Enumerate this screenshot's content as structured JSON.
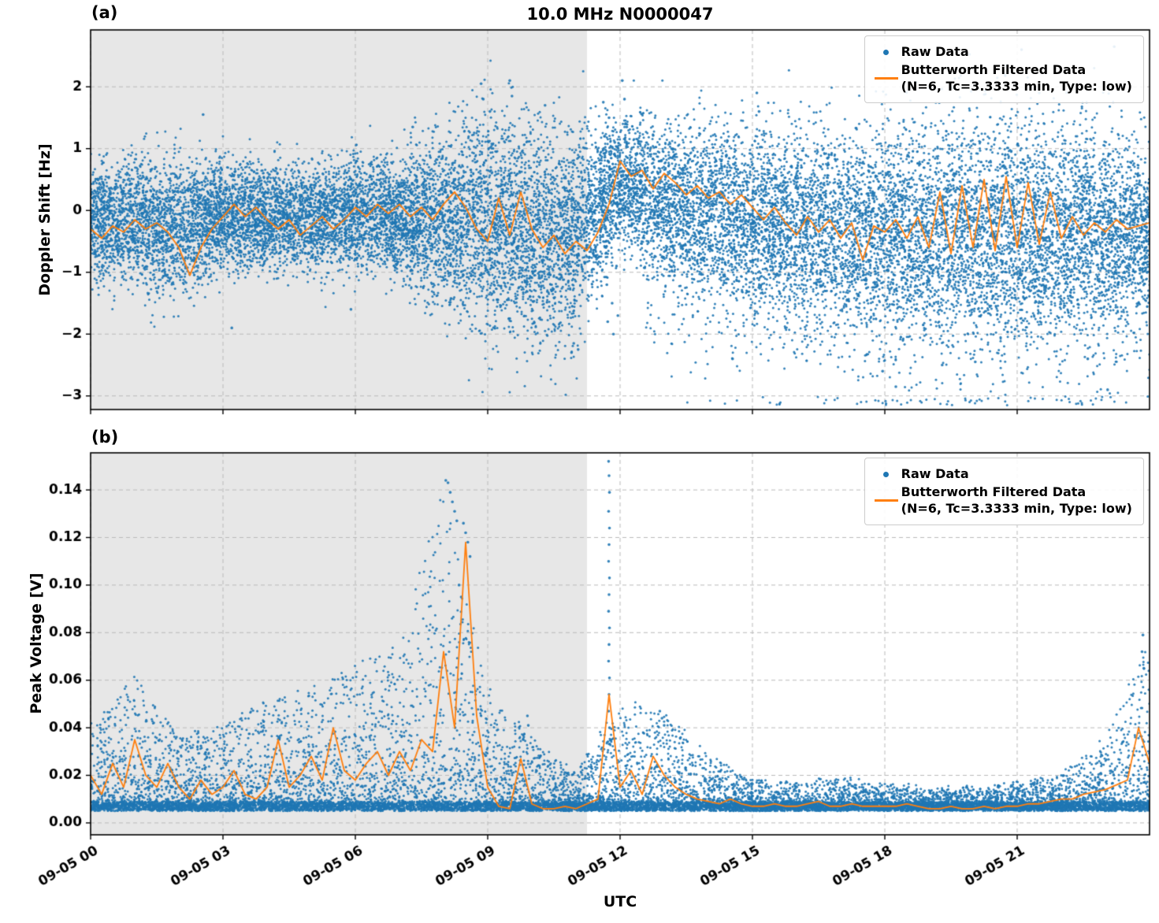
{
  "figure": {
    "title": "10.0 MHz N0000047",
    "xlabel": "UTC",
    "panel_a_tag": "(a)",
    "panel_b_tag": "(b)",
    "legend": {
      "raw_label": "Raw Data",
      "filtered_label": "Butterworth Filtered Data",
      "filtered_sublabel": "(N=6, Tc=3.3333 min, Type: low)"
    },
    "colors": {
      "raw": "#1f77b4",
      "filtered": "#ff7f0e",
      "shading": "#e7e7e7",
      "grid": "#bababa",
      "axis": "#000000"
    }
  },
  "chart_data": [
    {
      "type": "scatter",
      "panel": "a",
      "ylabel": "Doppler Shift [Hz]",
      "ylim": [
        -3.22,
        2.92
      ],
      "ytick_values": [
        -3,
        -2,
        -1,
        0,
        1,
        2
      ],
      "ytick_labels": [
        "−3",
        "−2",
        "−1",
        "0",
        "1",
        "2"
      ],
      "x_hours_range": [
        0,
        24
      ],
      "xtick_hours": [
        0,
        3,
        6,
        9,
        12,
        15,
        18,
        21
      ],
      "xtick_labels": [
        "09-05 00",
        "09-05 03",
        "09-05 06",
        "09-05 09",
        "09-05 12",
        "09-05 15",
        "09-05 18",
        "09-05 21"
      ],
      "shaded_region_hours": [
        0,
        11.25
      ],
      "grid": true,
      "legend_position": "upper right",
      "raw_envelope": {
        "hours_step": 1,
        "center": [
          -0.15,
          -0.2,
          -0.3,
          -0.1,
          -0.15,
          -0.12,
          -0.05,
          -0.1,
          -0.15,
          -0.2,
          -0.45,
          -0.4,
          0.45,
          0.15,
          0.0,
          -0.1,
          -0.2,
          -0.3,
          -0.3,
          -0.3,
          -0.3,
          -0.3,
          -0.3,
          -0.3,
          -0.25
        ],
        "spread": [
          0.45,
          0.5,
          0.55,
          0.42,
          0.42,
          0.42,
          0.45,
          0.45,
          0.75,
          0.9,
          0.85,
          0.8,
          0.5,
          0.6,
          0.65,
          0.7,
          0.75,
          0.8,
          0.85,
          0.85,
          0.9,
          0.9,
          0.85,
          0.75,
          0.6
        ]
      },
      "raw_outliers": [
        [
          2.55,
          1.55
        ],
        [
          3.2,
          -1.9
        ],
        [
          5.9,
          -1.6
        ],
        [
          7.3,
          1.35
        ],
        [
          8.85,
          2.05
        ],
        [
          8.9,
          1.8
        ],
        [
          9.05,
          1.6
        ],
        [
          9.5,
          2.1
        ],
        [
          9.55,
          1.85
        ],
        [
          10.3,
          1.7
        ],
        [
          10.9,
          -2.3
        ],
        [
          10.95,
          -2.15
        ],
        [
          11.05,
          -2.25
        ],
        [
          11.62,
          1.75
        ],
        [
          11.65,
          1.2
        ],
        [
          11.66,
          0.4
        ],
        [
          11.68,
          -0.5
        ],
        [
          11.7,
          -1.2
        ],
        [
          11.72,
          -1.8
        ],
        [
          11.75,
          1.5
        ],
        [
          11.78,
          0.9
        ],
        [
          11.8,
          -0.3
        ],
        [
          11.82,
          -1.5
        ],
        [
          11.85,
          -2.0
        ],
        [
          11.88,
          1.1
        ],
        [
          11.9,
          0.2
        ],
        [
          11.92,
          -0.9
        ],
        [
          11.95,
          -1.7
        ],
        [
          12.05,
          2.1
        ],
        [
          12.1,
          1.8
        ],
        [
          12.15,
          1.35
        ],
        [
          14.55,
          -2.4
        ],
        [
          15.1,
          1.9
        ],
        [
          15.15,
          1.6
        ],
        [
          17.95,
          -2.6
        ],
        [
          18.25,
          -2.85
        ],
        [
          19.3,
          -2.5
        ],
        [
          20.05,
          -2.45
        ],
        [
          21.1,
          2.6
        ],
        [
          21.5,
          1.9
        ],
        [
          22.6,
          -2.4
        ],
        [
          23.05,
          -2.9
        ],
        [
          23.2,
          2.65
        ]
      ],
      "filtered_series": {
        "step_hours": 0.25,
        "values": [
          -0.3,
          -0.45,
          -0.25,
          -0.35,
          -0.15,
          -0.3,
          -0.2,
          -0.35,
          -0.6,
          -1.05,
          -0.6,
          -0.3,
          -0.1,
          0.1,
          -0.1,
          0.05,
          -0.15,
          -0.3,
          -0.15,
          -0.4,
          -0.25,
          -0.1,
          -0.3,
          -0.15,
          0.05,
          -0.1,
          0.1,
          -0.05,
          0.1,
          -0.1,
          0.05,
          -0.15,
          0.1,
          0.3,
          0.05,
          -0.3,
          -0.5,
          0.2,
          -0.4,
          0.3,
          -0.3,
          -0.6,
          -0.4,
          -0.7,
          -0.5,
          -0.65,
          -0.35,
          0.1,
          0.8,
          0.55,
          0.65,
          0.35,
          0.6,
          0.45,
          0.25,
          0.4,
          0.2,
          0.3,
          0.1,
          0.25,
          0.05,
          -0.15,
          0.05,
          -0.2,
          -0.4,
          -0.1,
          -0.35,
          -0.15,
          -0.45,
          -0.2,
          -0.8,
          -0.25,
          -0.35,
          -0.15,
          -0.45,
          -0.1,
          -0.6,
          0.3,
          -0.7,
          0.4,
          -0.6,
          0.5,
          -0.65,
          0.55,
          -0.6,
          0.45,
          -0.55,
          0.3,
          -0.45,
          -0.1,
          -0.4,
          -0.2,
          -0.35,
          -0.15,
          -0.3,
          -0.25,
          -0.2
        ]
      }
    },
    {
      "type": "scatter",
      "panel": "b",
      "ylabel": "Peak Voltage [V]",
      "ylim": [
        -0.005,
        0.1556
      ],
      "ytick_values": [
        0.0,
        0.02,
        0.04,
        0.06,
        0.08,
        0.1,
        0.12,
        0.14
      ],
      "ytick_labels": [
        "0.00",
        "0.02",
        "0.04",
        "0.06",
        "0.08",
        "0.10",
        "0.12",
        "0.14"
      ],
      "x_hours_range": [
        0,
        24
      ],
      "xtick_hours": [
        0,
        3,
        6,
        9,
        12,
        15,
        18,
        21
      ],
      "xtick_labels": [
        "09-05 00",
        "09-05 03",
        "09-05 06",
        "09-05 09",
        "09-05 12",
        "09-05 15",
        "09-05 18",
        "09-05 21"
      ],
      "shaded_region_hours": [
        0,
        11.25
      ],
      "grid": true,
      "legend_position": "upper right",
      "raw_envelope": {
        "hours_step": 1,
        "base": 0.005,
        "amp": [
          0.035,
          0.055,
          0.03,
          0.035,
          0.045,
          0.05,
          0.06,
          0.07,
          0.135,
          0.05,
          0.03,
          0.015,
          0.045,
          0.04,
          0.022,
          0.012,
          0.01,
          0.012,
          0.01,
          0.008,
          0.008,
          0.01,
          0.014,
          0.03,
          0.07
        ]
      },
      "raw_outliers": [
        [
          8.05,
          0.144
        ],
        [
          8.1,
          0.143
        ],
        [
          8.15,
          0.139
        ],
        [
          8.2,
          0.135
        ],
        [
          8.25,
          0.131
        ],
        [
          8.3,
          0.127
        ],
        [
          8.35,
          0.1
        ],
        [
          8.4,
          0.095
        ],
        [
          8.45,
          0.126
        ],
        [
          8.5,
          0.122
        ],
        [
          8.55,
          0.118
        ],
        [
          8.6,
          0.112
        ],
        [
          9.9,
          0.045
        ],
        [
          9.92,
          0.041
        ],
        [
          11.74,
          0.152
        ],
        [
          11.75,
          0.146
        ],
        [
          11.76,
          0.139
        ],
        [
          11.74,
          0.131
        ],
        [
          11.76,
          0.124
        ],
        [
          11.75,
          0.117
        ],
        [
          11.74,
          0.11
        ],
        [
          11.76,
          0.103
        ],
        [
          11.75,
          0.096
        ],
        [
          11.74,
          0.089
        ],
        [
          11.76,
          0.082
        ],
        [
          11.75,
          0.075
        ],
        [
          11.74,
          0.068
        ],
        [
          11.76,
          0.061
        ],
        [
          11.75,
          0.054
        ],
        [
          11.74,
          0.047
        ],
        [
          11.76,
          0.04
        ],
        [
          12.9,
          0.047
        ],
        [
          12.95,
          0.044
        ],
        [
          13.0,
          0.041
        ],
        [
          23.85,
          0.079
        ],
        [
          23.83,
          0.072
        ],
        [
          23.87,
          0.065
        ]
      ],
      "filtered_series": {
        "step_hours": 0.25,
        "values": [
          0.02,
          0.012,
          0.025,
          0.015,
          0.035,
          0.02,
          0.015,
          0.025,
          0.015,
          0.01,
          0.018,
          0.012,
          0.015,
          0.022,
          0.012,
          0.01,
          0.015,
          0.035,
          0.015,
          0.02,
          0.028,
          0.018,
          0.04,
          0.022,
          0.018,
          0.025,
          0.03,
          0.02,
          0.03,
          0.022,
          0.035,
          0.03,
          0.072,
          0.04,
          0.118,
          0.045,
          0.015,
          0.007,
          0.006,
          0.027,
          0.008,
          0.006,
          0.006,
          0.007,
          0.006,
          0.008,
          0.01,
          0.054,
          0.015,
          0.022,
          0.012,
          0.028,
          0.02,
          0.015,
          0.012,
          0.01,
          0.009,
          0.008,
          0.01,
          0.008,
          0.007,
          0.007,
          0.008,
          0.007,
          0.007,
          0.008,
          0.009,
          0.007,
          0.007,
          0.008,
          0.007,
          0.007,
          0.007,
          0.007,
          0.008,
          0.007,
          0.006,
          0.006,
          0.007,
          0.006,
          0.006,
          0.007,
          0.006,
          0.007,
          0.007,
          0.008,
          0.008,
          0.009,
          0.01,
          0.01,
          0.012,
          0.013,
          0.014,
          0.016,
          0.018,
          0.04,
          0.025
        ]
      }
    }
  ]
}
